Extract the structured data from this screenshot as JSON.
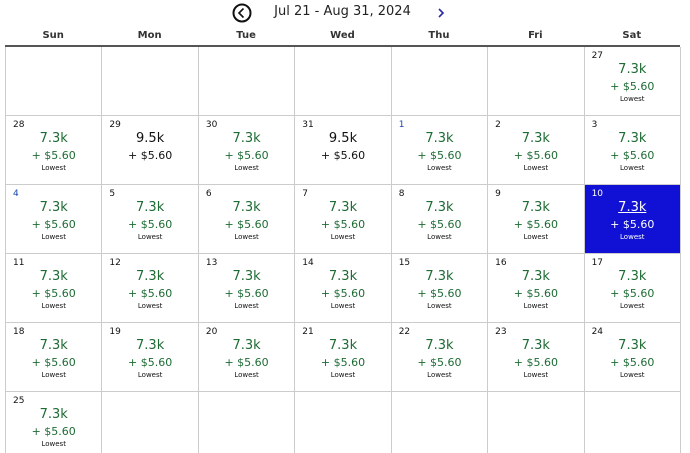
{
  "header": {
    "title": "Jul 21 - Aug 31, 2024"
  },
  "weekdays": [
    "Sun",
    "Mon",
    "Tue",
    "Wed",
    "Thu",
    "Fri",
    "Sat"
  ],
  "weeks": [
    [
      null,
      null,
      null,
      null,
      null,
      null,
      {
        "date": "27",
        "price": "7.3k",
        "fee": "+ $5.60",
        "note": "Lowest"
      }
    ],
    [
      {
        "date": "28",
        "price": "7.3k",
        "fee": "+ $5.60",
        "note": "Lowest"
      },
      {
        "date": "29",
        "price": "9.5k",
        "fee": "+ $5.60"
      },
      {
        "date": "30",
        "price": "7.3k",
        "fee": "+ $5.60",
        "note": "Lowest"
      },
      {
        "date": "31",
        "price": "9.5k",
        "fee": "+ $5.60"
      },
      {
        "date": "1",
        "price": "7.3k",
        "fee": "+ $5.60",
        "note": "Lowest"
      },
      {
        "date": "2",
        "price": "7.3k",
        "fee": "+ $5.60",
        "note": "Lowest"
      },
      {
        "date": "3",
        "price": "7.3k",
        "fee": "+ $5.60",
        "note": "Lowest"
      }
    ],
    [
      {
        "date": "4",
        "price": "7.3k",
        "fee": "+ $5.60",
        "note": "Lowest"
      },
      {
        "date": "5",
        "price": "7.3k",
        "fee": "+ $5.60",
        "note": "Lowest"
      },
      {
        "date": "6",
        "price": "7.3k",
        "fee": "+ $5.60",
        "note": "Lowest"
      },
      {
        "date": "7",
        "price": "7.3k",
        "fee": "+ $5.60",
        "note": "Lowest"
      },
      {
        "date": "8",
        "price": "7.3k",
        "fee": "+ $5.60",
        "note": "Lowest"
      },
      {
        "date": "9",
        "price": "7.3k",
        "fee": "+ $5.60",
        "note": "Lowest"
      },
      {
        "date": "10",
        "price": "7.3k",
        "fee": "+ $5.60",
        "note": "Lowest",
        "selected": true
      }
    ],
    [
      {
        "date": "11",
        "price": "7.3k",
        "fee": "+ $5.60",
        "note": "Lowest"
      },
      {
        "date": "12",
        "price": "7.3k",
        "fee": "+ $5.60",
        "note": "Lowest"
      },
      {
        "date": "13",
        "price": "7.3k",
        "fee": "+ $5.60",
        "note": "Lowest"
      },
      {
        "date": "14",
        "price": "7.3k",
        "fee": "+ $5.60",
        "note": "Lowest"
      },
      {
        "date": "15",
        "price": "7.3k",
        "fee": "+ $5.60",
        "note": "Lowest"
      },
      {
        "date": "16",
        "price": "7.3k",
        "fee": "+ $5.60",
        "note": "Lowest"
      },
      {
        "date": "17",
        "price": "7.3k",
        "fee": "+ $5.60",
        "note": "Lowest"
      }
    ],
    [
      {
        "date": "18",
        "price": "7.3k",
        "fee": "+ $5.60",
        "note": "Lowest"
      },
      {
        "date": "19",
        "price": "7.3k",
        "fee": "+ $5.60",
        "note": "Lowest"
      },
      {
        "date": "20",
        "price": "7.3k",
        "fee": "+ $5.60",
        "note": "Lowest"
      },
      {
        "date": "21",
        "price": "7.3k",
        "fee": "+ $5.60",
        "note": "Lowest"
      },
      {
        "date": "22",
        "price": "7.3k",
        "fee": "+ $5.60",
        "note": "Lowest"
      },
      {
        "date": "23",
        "price": "7.3k",
        "fee": "+ $5.60",
        "note": "Lowest"
      },
      {
        "date": "24",
        "price": "7.3k",
        "fee": "+ $5.60",
        "note": "Lowest"
      }
    ],
    [
      {
        "date": "25",
        "price": "7.3k",
        "fee": "+ $5.60",
        "note": "Lowest"
      },
      null,
      null,
      null,
      null,
      null,
      null
    ]
  ]
}
